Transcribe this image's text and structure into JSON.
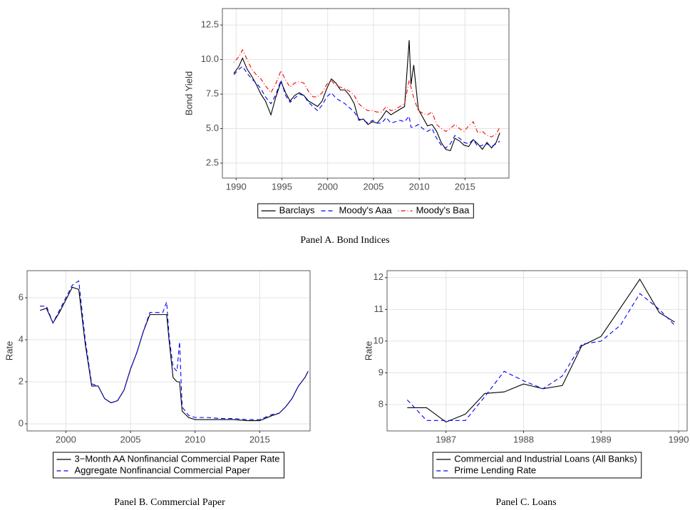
{
  "chart_data": [
    {
      "type": "line",
      "caption": "Panel A. Bond Indices",
      "ylabel": "Bond Yield",
      "legend": "bottom",
      "legend_layout": "horizontal",
      "grid": true,
      "x": [
        1989.75,
        1990.3,
        1990.7,
        1991.2,
        1991.7,
        1992.2,
        1992.7,
        1993.2,
        1993.8,
        1994.3,
        1994.9,
        1995.4,
        1995.9,
        1996.4,
        1996.9,
        1997.4,
        1997.9,
        1998.4,
        1998.9,
        1999.4,
        1999.9,
        2000.4,
        2000.9,
        2001.4,
        2001.9,
        2002.4,
        2002.9,
        2003.4,
        2003.9,
        2004.4,
        2004.9,
        2005.4,
        2005.9,
        2006.4,
        2006.9,
        2007.4,
        2007.9,
        2008.4,
        2008.9,
        2009.1,
        2009.4,
        2009.9,
        2010.4,
        2010.9,
        2011.4,
        2011.9,
        2012.4,
        2012.9,
        2013.4,
        2013.9,
        2014.4,
        2014.9,
        2015.4,
        2015.9,
        2016.4,
        2016.9,
        2017.4,
        2017.9,
        2018.4,
        2018.8
      ],
      "series": [
        {
          "name": "Barclays",
          "color": "#000000",
          "dash": "solid",
          "values": [
            9.0,
            9.5,
            10.1,
            9.3,
            8.8,
            8.2,
            7.5,
            7.0,
            6.0,
            7.2,
            8.4,
            7.6,
            7.0,
            7.4,
            7.6,
            7.4,
            7.0,
            6.8,
            6.6,
            7.0,
            7.9,
            8.6,
            8.3,
            7.8,
            7.8,
            7.4,
            6.8,
            5.6,
            5.7,
            5.3,
            5.5,
            5.4,
            5.8,
            6.3,
            6.0,
            6.2,
            6.4,
            6.6,
            11.4,
            8.2,
            9.6,
            6.4,
            5.8,
            5.2,
            5.3,
            4.8,
            4.0,
            3.5,
            3.4,
            4.3,
            4.1,
            3.8,
            3.7,
            4.2,
            3.9,
            3.5,
            4.0,
            3.6,
            4.0,
            4.7
          ]
        },
        {
          "name": "Moody's Aaa",
          "color": "#0000ff",
          "dash": "dashed",
          "values": [
            8.9,
            9.3,
            9.5,
            9.0,
            8.6,
            8.3,
            7.9,
            7.3,
            6.8,
            7.4,
            8.5,
            7.4,
            6.9,
            7.2,
            7.5,
            7.4,
            6.9,
            6.6,
            6.3,
            6.7,
            7.3,
            7.6,
            7.2,
            7.0,
            6.8,
            6.5,
            6.2,
            5.7,
            5.6,
            5.4,
            5.6,
            5.4,
            5.4,
            5.8,
            5.4,
            5.5,
            5.6,
            5.5,
            5.9,
            5.1,
            5.1,
            5.3,
            5.0,
            4.8,
            5.0,
            4.3,
            3.8,
            3.6,
            3.9,
            4.5,
            4.3,
            4.0,
            3.9,
            4.2,
            3.7,
            3.8,
            3.9,
            3.7,
            3.9,
            4.1
          ]
        },
        {
          "name": "Moody's Baa",
          "color": "#ff0000",
          "dash": "dotdash",
          "values": [
            9.8,
            10.2,
            10.7,
            10.0,
            9.3,
            8.9,
            8.6,
            8.1,
            7.6,
            8.2,
            9.2,
            8.5,
            8.0,
            8.3,
            8.4,
            8.3,
            7.7,
            7.3,
            7.3,
            7.6,
            8.2,
            8.5,
            8.1,
            8.0,
            7.9,
            7.7,
            7.4,
            6.8,
            6.5,
            6.3,
            6.3,
            6.2,
            6.2,
            6.6,
            6.3,
            6.4,
            6.6,
            6.8,
            8.5,
            8.0,
            7.2,
            6.3,
            6.1,
            6.0,
            6.2,
            5.3,
            5.0,
            4.8,
            5.0,
            5.3,
            5.0,
            4.8,
            5.2,
            5.5,
            4.7,
            4.8,
            4.5,
            4.4,
            4.6,
            5.1
          ]
        }
      ],
      "xlim": [
        1988.5,
        2019.8
      ],
      "xticks": [
        1990,
        1995,
        2000,
        2005,
        2010,
        2015
      ],
      "ylim": [
        1.42,
        13.69
      ],
      "yticks": [
        2.5,
        {
          "value": 5,
          "label": "5.0"
        },
        7.5,
        {
          "value": 10,
          "label": "10.0"
        },
        12.5
      ]
    },
    {
      "type": "line",
      "caption": "Panel B. Commercial Paper",
      "ylabel": "Rate",
      "legend": "bottom",
      "legend_layout": "vertical",
      "grid": true,
      "x": [
        1998.0,
        1998.5,
        1999.0,
        1999.5,
        2000.0,
        2000.5,
        2001.0,
        2001.5,
        2002.0,
        2002.5,
        2003.0,
        2003.5,
        2004.0,
        2004.5,
        2005.0,
        2005.5,
        2006.0,
        2006.5,
        2007.0,
        2007.5,
        2007.8,
        2008.0,
        2008.3,
        2008.6,
        2008.8,
        2009.0,
        2009.5,
        2010.0,
        2010.5,
        2011.0,
        2012.0,
        2013.0,
        2014.0,
        2015.0,
        2016.0,
        2016.5,
        2017.0,
        2017.5,
        2018.0,
        2018.5,
        2018.75
      ],
      "series": [
        {
          "name": "3−Month AA Nonfinancial Commercial Paper Rate",
          "color": "#000000",
          "dash": "solid",
          "values": [
            5.4,
            5.5,
            4.8,
            5.3,
            5.9,
            6.5,
            6.4,
            3.8,
            1.8,
            1.8,
            1.2,
            1.0,
            1.1,
            1.6,
            2.6,
            3.4,
            4.4,
            5.2,
            5.2,
            5.2,
            5.2,
            3.9,
            2.2,
            2.0,
            2.0,
            0.6,
            0.3,
            0.2,
            0.2,
            0.2,
            0.2,
            0.2,
            0.15,
            0.15,
            0.4,
            0.5,
            0.8,
            1.2,
            1.8,
            2.2,
            2.5
          ]
        },
        {
          "name": "Aggregate Nonfinancial Commercial Paper",
          "color": "#0000ff",
          "dash": "dashed",
          "values": [
            5.6,
            5.6,
            4.8,
            5.4,
            6.0,
            6.6,
            6.8,
            4.0,
            1.9,
            1.8,
            1.2,
            1.0,
            1.1,
            1.6,
            2.6,
            3.4,
            4.4,
            5.3,
            5.3,
            5.3,
            5.8,
            4.1,
            2.7,
            2.5,
            3.9,
            0.8,
            0.4,
            0.3,
            0.3,
            0.3,
            0.25,
            0.25,
            0.2,
            0.2,
            0.45,
            0.5,
            0.8,
            1.2,
            1.8,
            2.2,
            2.5
          ]
        }
      ],
      "xlim": [
        1997.0,
        2018.9
      ],
      "xticks": [
        2000,
        2005,
        2010,
        2015
      ],
      "ylim": [
        -0.34,
        7.29
      ],
      "yticks": [
        0,
        2,
        4,
        6
      ]
    },
    {
      "type": "line",
      "caption": "Panel C. Loans",
      "ylabel": "Rate",
      "legend": "bottom",
      "legend_layout": "vertical",
      "grid": true,
      "x": [
        1986.5,
        1986.75,
        1987.0,
        1987.25,
        1987.5,
        1987.75,
        1988.0,
        1988.25,
        1988.5,
        1988.75,
        1989.0,
        1989.25,
        1989.5,
        1989.75,
        1989.95
      ],
      "series": [
        {
          "name": "Commercial and Industrial Loans (All Banks)",
          "color": "#000000",
          "dash": "solid",
          "values": [
            7.9,
            7.9,
            7.45,
            7.7,
            8.35,
            8.4,
            8.65,
            8.5,
            8.6,
            9.85,
            10.15,
            11.05,
            11.95,
            10.9,
            10.6
          ]
        },
        {
          "name": "Prime Lending Rate",
          "color": "#0000ff",
          "dash": "dashed",
          "values": [
            8.15,
            7.5,
            7.5,
            7.5,
            8.25,
            9.05,
            8.75,
            8.5,
            8.9,
            9.9,
            10.0,
            10.5,
            11.5,
            11.0,
            10.5
          ]
        }
      ],
      "xlim": [
        1986.24,
        1990.11
      ],
      "xticks": [
        1987,
        1988,
        1989,
        1990
      ],
      "ylim": [
        7.17,
        12.22
      ],
      "yticks": [
        8,
        9,
        10,
        11,
        12
      ]
    }
  ]
}
